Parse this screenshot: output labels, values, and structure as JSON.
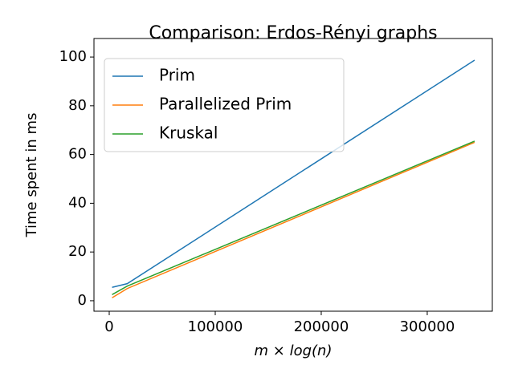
{
  "chart_data": {
    "type": "line",
    "title": "Comparison: Erdos-Rényi graphs",
    "x_label": "m × log(n)",
    "y_label": "Time spent in ms",
    "x": [
      2700,
      17000,
      344700
    ],
    "series": [
      {
        "name": "Prim",
        "color": "#1f77b4",
        "values": [
          5.5,
          7,
          98.7
        ]
      },
      {
        "name": "Parallelized Prim",
        "color": "#ff7f0e",
        "values": [
          1.2,
          5,
          65
        ]
      },
      {
        "name": "Kruskal",
        "color": "#2ca02c",
        "values": [
          2.5,
          6,
          65.5
        ]
      }
    ],
    "xlim": [
      -14400,
      361400
    ],
    "xticks": [
      0,
      100000,
      200000,
      300000
    ],
    "ylim": [
      -4.3,
      107.6
    ],
    "yticks": [
      0,
      20,
      40,
      60,
      80,
      100
    ],
    "grid": false,
    "legend": "upper left"
  }
}
